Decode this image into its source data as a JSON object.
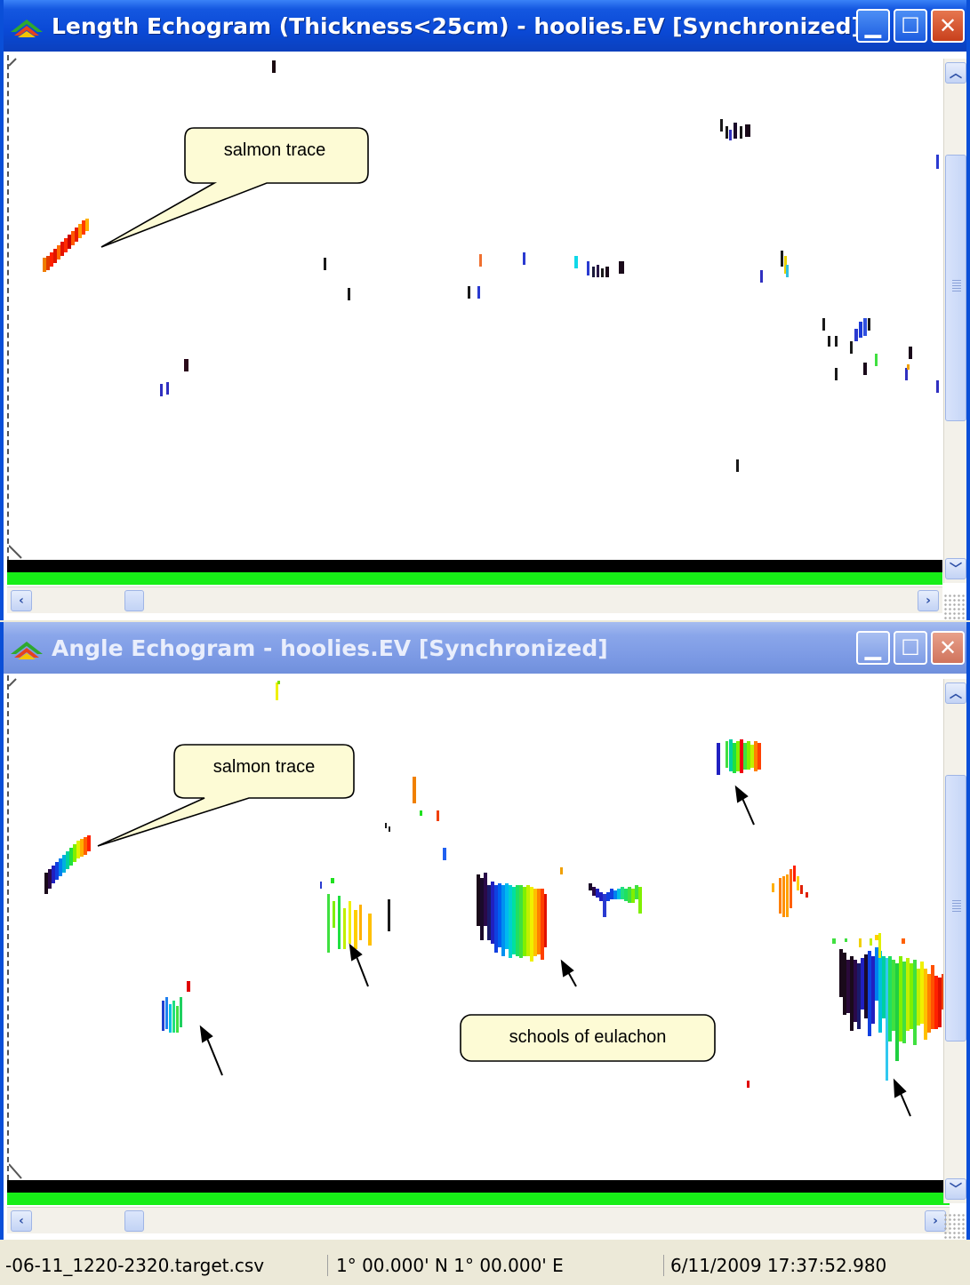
{
  "windows": [
    {
      "title": "Length Echogram (Thickness<25cm) - hoolies.EV [Synchronized]",
      "callouts": [
        "salmon trace"
      ]
    },
    {
      "title": "Angle Echogram - hoolies.EV [Synchronized]",
      "callouts": [
        "salmon trace",
        "schools of eulachon"
      ]
    }
  ],
  "caption_buttons": {
    "minimize": "minimize-icon",
    "maximize": "maximize-icon",
    "close": "close-icon"
  },
  "status_bar": {
    "file": "-06-11_1220-2320.target.csv",
    "position": "1° 00.000' N 1° 00.000' E",
    "datetime": "6/11/2009 17:37:52.980"
  },
  "colors": {
    "active_title": "#0a49d6",
    "inactive_title": "#7b99e4",
    "bottom_band_black": "#000000",
    "bottom_band_green": "#17ee17",
    "callout_fill": "#fdfbd5"
  }
}
